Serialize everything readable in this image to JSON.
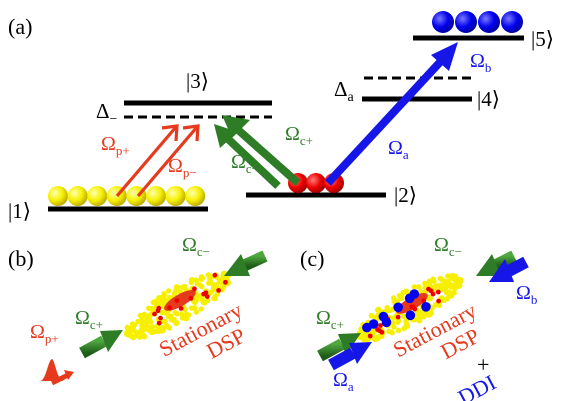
{
  "panels": {
    "a": {
      "label": "(a)"
    },
    "b": {
      "label": "(b)"
    },
    "c": {
      "label": "(c)"
    }
  },
  "levels": {
    "l1": "|1⟩",
    "l2": "|2⟩",
    "l3": "|3⟩",
    "l4": "|4⟩",
    "l5": "|5⟩"
  },
  "detunings": {
    "minus": {
      "base": "Δ",
      "sub": "−"
    },
    "a": {
      "base": "Δ",
      "sub": "a"
    }
  },
  "fields": {
    "p_plus": {
      "base": "Ω",
      "sub": "p+"
    },
    "p_minus": {
      "base": "Ω",
      "sub": "p−"
    },
    "c_plus": {
      "base": "Ω",
      "sub": "c+"
    },
    "c_minus": {
      "base": "Ω",
      "sub": "c−"
    },
    "a": {
      "base": "Ω",
      "sub": "a"
    },
    "b": {
      "base": "Ω",
      "sub": "b"
    }
  },
  "panel_b": {
    "text_line1": "Stationary",
    "text_line2": "DSP"
  },
  "panel_c": {
    "text_line1": "Stationary",
    "text_line2": "DSP",
    "plus": "+",
    "text_line3": "DDI"
  },
  "colors": {
    "red": "#e53a1d",
    "green": "#2e7d26",
    "blue": "#1616e8",
    "atom_yellow": "#f6f000",
    "atom_red": "#ee0000",
    "atom_blue": "#0000ee",
    "level": "#000000"
  }
}
